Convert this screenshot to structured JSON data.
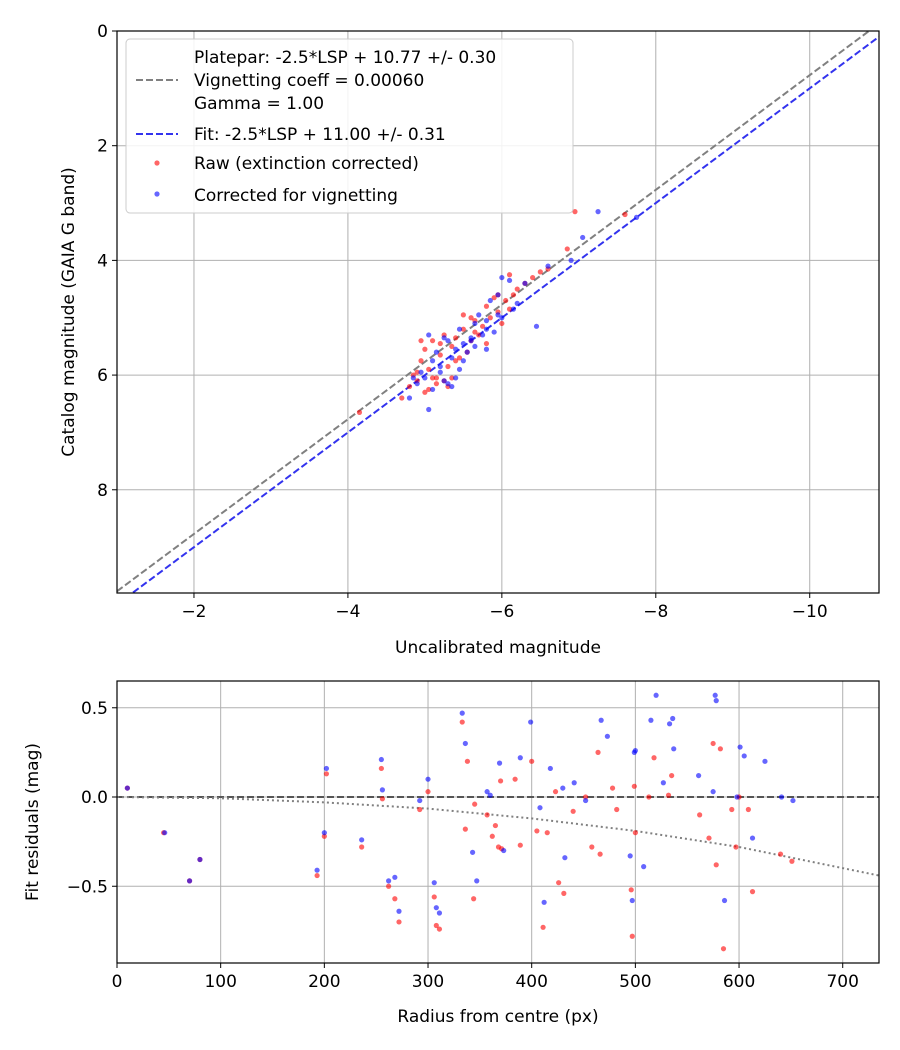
{
  "chart_data": [
    {
      "type": "scatter",
      "xlabel": "Uncalibrated magnitude",
      "ylabel": "Catalog magnitude (GAIA G band)",
      "xlim": [
        -1,
        -10.9
      ],
      "ylim": [
        9.8,
        0
      ],
      "xticks": [
        -2,
        -4,
        -6,
        -8,
        -10
      ],
      "xtick_labels": [
        "−2",
        "−4",
        "−6",
        "−8",
        "−10"
      ],
      "yticks": [
        0,
        2,
        4,
        6,
        8
      ],
      "ytick_labels": [
        "0",
        "2",
        "4",
        "6",
        "8"
      ],
      "grid": true,
      "legend_position": "top-left",
      "lines": [
        {
          "name": "Platepar",
          "legend": [
            "Platepar: -2.5*LSP + 10.77 +/- 0.30",
            "Vignetting coeff = 0.00060",
            "Gamma = 1.00"
          ],
          "intercept": 10.77,
          "color": "#808080"
        },
        {
          "name": "Fit",
          "legend": [
            "Fit: -2.5*LSP + 11.00 +/- 0.31"
          ],
          "intercept": 11.0,
          "color": "#3333ee"
        }
      ],
      "series": [
        {
          "name": "Raw (extinction corrected)",
          "color": "#ff0000",
          "x": [
            -4.15,
            -4.7,
            -4.8,
            -4.85,
            -4.9,
            -4.95,
            -5.0,
            -5.0,
            -5.05,
            -5.1,
            -5.1,
            -5.15,
            -5.2,
            -5.25,
            -5.3,
            -5.3,
            -5.35,
            -5.4,
            -5.45,
            -5.5,
            -5.55,
            -5.6,
            -5.65,
            -5.7,
            -5.75,
            -5.8,
            -5.85,
            -5.9,
            -5.95,
            -6.0,
            -6.05,
            -6.1,
            -6.15,
            -6.2,
            -6.3,
            -6.4,
            -6.5,
            -6.6,
            -6.85,
            -6.95,
            -7.6,
            -4.9,
            -5.05,
            -5.2,
            -5.35,
            -5.5,
            -5.65,
            -5.8,
            -5.95,
            -6.1,
            -5.15,
            -5.4,
            -5.6,
            -4.95,
            -5.25
          ],
          "y": [
            6.65,
            6.4,
            6.2,
            6.0,
            6.1,
            5.75,
            5.55,
            6.3,
            5.9,
            6.05,
            5.4,
            6.15,
            5.65,
            5.3,
            5.85,
            6.2,
            5.5,
            5.35,
            5.7,
            5.2,
            5.6,
            5.4,
            5.05,
            5.3,
            5.15,
            4.8,
            5.0,
            4.65,
            4.9,
            5.1,
            4.7,
            4.85,
            4.6,
            4.5,
            4.4,
            4.3,
            4.2,
            4.15,
            3.8,
            3.15,
            3.2,
            5.95,
            6.25,
            5.45,
            6.05,
            4.95,
            5.25,
            5.45,
            4.6,
            4.25,
            6.05,
            5.75,
            5.0,
            5.4,
            6.1
          ]
        },
        {
          "name": "Corrected for vignetting",
          "color": "#0000ff",
          "x": [
            -4.8,
            -4.9,
            -5.0,
            -5.05,
            -5.1,
            -5.15,
            -5.2,
            -5.25,
            -5.3,
            -5.35,
            -5.4,
            -5.45,
            -5.5,
            -5.55,
            -5.6,
            -5.65,
            -5.7,
            -5.75,
            -5.8,
            -5.85,
            -5.9,
            -5.95,
            -6.0,
            -6.1,
            -6.2,
            -6.3,
            -6.45,
            -6.6,
            -6.9,
            -7.05,
            -7.25,
            -7.75,
            -5.05,
            -5.2,
            -5.35,
            -5.5,
            -5.65,
            -5.8,
            -5.95,
            -6.15,
            -4.95,
            -5.1,
            -5.3,
            -5.45,
            -5.6,
            -5.8,
            -6.0,
            -5.4,
            -5.25,
            -4.85
          ],
          "y": [
            6.4,
            6.15,
            6.05,
            5.3,
            6.25,
            5.6,
            5.85,
            6.1,
            5.4,
            5.7,
            5.55,
            5.2,
            5.45,
            5.6,
            5.35,
            5.1,
            4.95,
            5.3,
            5.05,
            4.7,
            5.25,
            4.6,
            5.0,
            4.35,
            4.75,
            4.4,
            5.15,
            4.1,
            4.0,
            3.6,
            3.15,
            3.25,
            6.6,
            5.95,
            6.2,
            5.75,
            5.5,
            5.55,
            4.95,
            4.85,
            5.95,
            5.75,
            6.15,
            5.9,
            5.4,
            5.2,
            4.3,
            6.05,
            5.35,
            6.05
          ]
        }
      ],
      "legend": [
        "Platepar: -2.5*LSP + 10.77 +/- 0.30",
        "Vignetting coeff = 0.00060",
        "Gamma = 1.00",
        "Fit: -2.5*LSP + 11.00 +/- 0.31",
        "Raw (extinction corrected)",
        "Corrected for vignetting"
      ]
    },
    {
      "type": "scatter",
      "xlabel": "Radius from centre (px)",
      "ylabel": "Fit residuals (mag)",
      "xlim": [
        0,
        735
      ],
      "ylim": [
        -0.93,
        0.65
      ],
      "xticks": [
        0,
        100,
        200,
        300,
        400,
        500,
        600,
        700
      ],
      "xtick_labels": [
        "0",
        "100",
        "200",
        "300",
        "400",
        "500",
        "600",
        "700"
      ],
      "yticks": [
        0.5,
        0.0,
        -0.5
      ],
      "ytick_labels": [
        "0.5",
        "0.0",
        "−0.5"
      ],
      "grid": true,
      "reference_lines": [
        {
          "name": "zero",
          "y": 0.0,
          "style": "dashed",
          "color": "#555555"
        },
        {
          "name": "vignetting model",
          "style": "dotted",
          "color": "#808080",
          "x": [
            0,
            100,
            200,
            300,
            400,
            500,
            600,
            735
          ],
          "y": [
            0.0,
            -0.007,
            -0.03,
            -0.065,
            -0.12,
            -0.19,
            -0.28,
            -0.44
          ]
        }
      ],
      "series": [
        {
          "name": "Raw",
          "color": "#ff0000",
          "x": [
            10,
            45,
            70,
            80,
            193,
            200,
            202,
            236,
            255,
            256,
            262,
            268,
            272,
            292,
            300,
            306,
            308,
            311,
            333,
            336,
            338,
            344,
            345,
            357,
            362,
            365,
            368,
            370,
            371,
            384,
            389,
            400,
            405,
            411,
            415,
            423,
            426,
            431,
            440,
            452,
            458,
            464,
            466,
            478,
            482,
            496,
            497,
            499,
            500,
            513,
            518,
            532,
            535,
            562,
            571,
            575,
            578,
            582,
            585,
            593,
            597,
            600,
            609,
            613,
            640,
            651
          ],
          "y": [
            0.05,
            -0.2,
            -0.47,
            -0.35,
            -0.44,
            -0.22,
            0.13,
            -0.28,
            0.16,
            -0.01,
            -0.5,
            -0.57,
            -0.7,
            -0.07,
            0.03,
            -0.56,
            -0.72,
            -0.74,
            0.42,
            -0.18,
            0.2,
            -0.57,
            -0.04,
            -0.1,
            -0.22,
            -0.16,
            -0.28,
            0.09,
            -0.29,
            0.1,
            -0.27,
            0.2,
            -0.19,
            -0.73,
            -0.2,
            0.03,
            -0.48,
            -0.54,
            -0.08,
            0.0,
            -0.28,
            0.25,
            -0.32,
            0.05,
            -0.07,
            -0.52,
            -0.78,
            0.06,
            -0.2,
            0.0,
            0.22,
            0.01,
            0.12,
            -0.1,
            -0.23,
            0.3,
            -0.38,
            0.27,
            -0.85,
            -0.07,
            -0.28,
            0.0,
            -0.07,
            -0.53,
            -0.32,
            -0.36
          ]
        },
        {
          "name": "Corrected",
          "color": "#0000ff",
          "x": [
            10,
            46,
            70,
            80,
            193,
            200,
            202,
            236,
            255,
            256,
            262,
            268,
            272,
            292,
            300,
            306,
            308,
            311,
            333,
            336,
            343,
            347,
            357,
            360,
            369,
            373,
            389,
            399,
            408,
            412,
            418,
            430,
            432,
            441,
            452,
            467,
            473,
            495,
            497,
            499,
            500,
            508,
            515,
            520,
            527,
            533,
            536,
            537,
            561,
            575,
            577,
            578,
            586,
            598,
            601,
            605,
            613,
            625,
            641,
            652
          ],
          "y": [
            0.05,
            -0.2,
            -0.47,
            -0.35,
            -0.41,
            -0.2,
            0.16,
            -0.24,
            0.21,
            0.04,
            -0.47,
            -0.45,
            -0.64,
            -0.02,
            0.1,
            -0.48,
            -0.62,
            -0.65,
            0.47,
            0.3,
            -0.31,
            -0.47,
            0.03,
            0.01,
            0.19,
            -0.3,
            0.22,
            0.42,
            -0.06,
            -0.59,
            0.16,
            0.05,
            -0.34,
            0.08,
            -0.02,
            0.43,
            0.34,
            -0.33,
            -0.58,
            0.25,
            0.26,
            -0.39,
            0.43,
            0.57,
            0.08,
            0.41,
            0.44,
            0.27,
            0.12,
            0.03,
            0.57,
            0.54,
            -0.58,
            0.0,
            0.28,
            0.23,
            -0.23,
            0.2,
            0.0,
            -0.02
          ]
        }
      ]
    }
  ]
}
